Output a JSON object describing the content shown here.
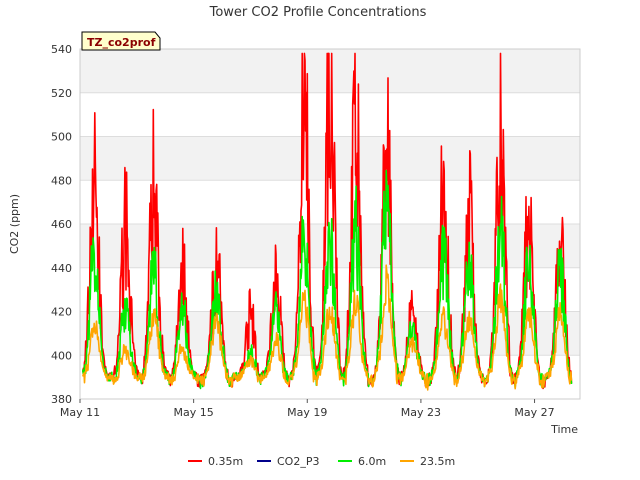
{
  "chart_data": {
    "type": "line",
    "title": "Tower CO2 Profile Concentrations",
    "xlabel": "Time",
    "ylabel": "CO2 (ppm)",
    "badge": "TZ_co2prof",
    "ylim": [
      380,
      540
    ],
    "yticks": [
      380,
      400,
      420,
      440,
      460,
      480,
      500,
      520,
      540
    ],
    "xlim_days": [
      11,
      28.6
    ],
    "xticks": [
      {
        "day": 11,
        "label": "May 11"
      },
      {
        "day": 15,
        "label": "May 15"
      },
      {
        "day": 19,
        "label": "May 19"
      },
      {
        "day": 23,
        "label": "May 23"
      },
      {
        "day": 27,
        "label": "May 27"
      }
    ],
    "grid": true,
    "legend_position": "bottom",
    "series": [
      {
        "name": "0.35m",
        "color": "#ff0000",
        "peaks": [
          483,
          460,
          482,
          443,
          448,
          421,
          437,
          519,
          528,
          507,
          495,
          424,
          479,
          466,
          497,
          465,
          453
        ]
      },
      {
        "name": "CO2_P3",
        "color": "#00008b",
        "peaks": []
      },
      {
        "name": "6.0m",
        "color": "#00ee00",
        "peaks": [
          448,
          425,
          442,
          425,
          432,
          405,
          425,
          460,
          456,
          460,
          478,
          415,
          450,
          445,
          460,
          445,
          440
        ]
      },
      {
        "name": "23.5m",
        "color": "#ffa500",
        "peaks": [
          418,
          406,
          420,
          406,
          420,
          401,
          410,
          428,
          425,
          427,
          435,
          409,
          420,
          420,
          428,
          422,
          420
        ]
      }
    ],
    "peak_days": [
      11.5,
      12.6,
      13.6,
      14.6,
      15.8,
      17.0,
      17.9,
      18.9,
      19.8,
      20.7,
      21.8,
      22.7,
      23.8,
      24.7,
      25.8,
      26.8,
      27.9
    ],
    "baseline": 393
  }
}
